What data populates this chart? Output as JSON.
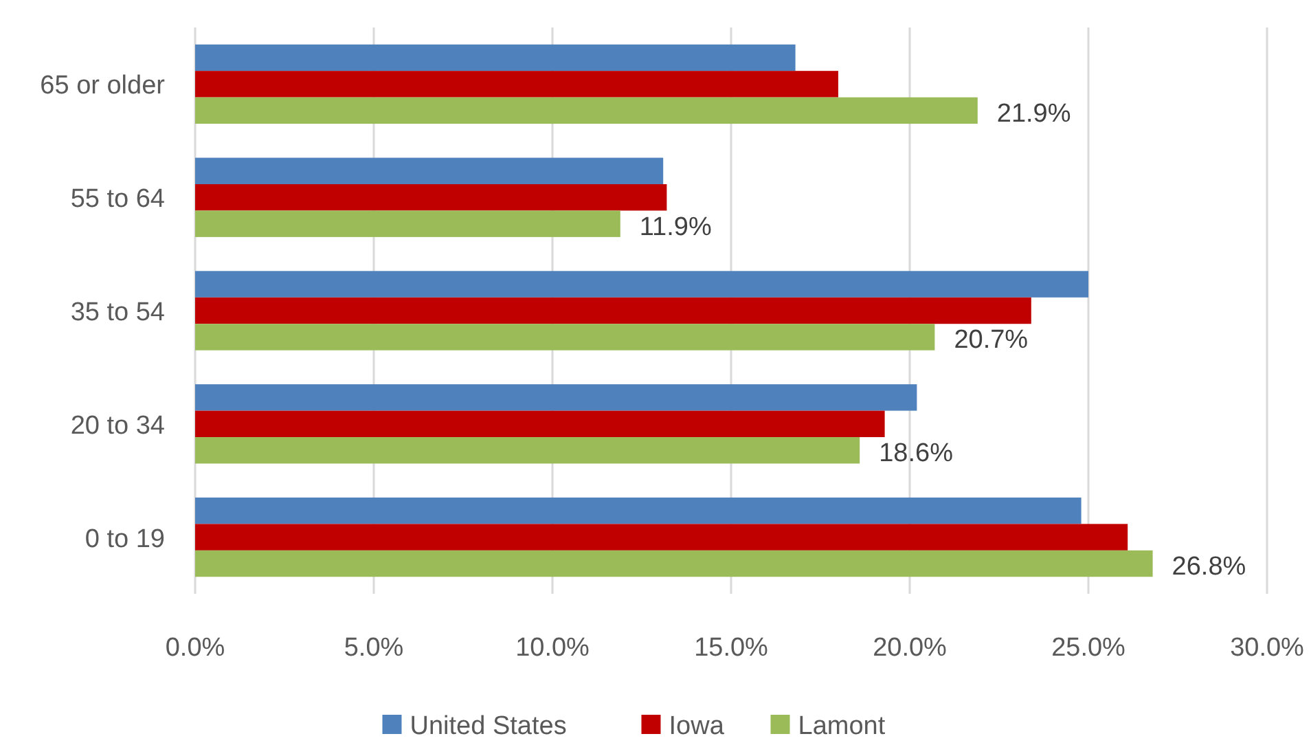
{
  "chart_data": {
    "type": "bar",
    "orientation": "horizontal",
    "categories": [
      "65 or older",
      "55 to 64",
      "35 to 54",
      "20 to 34",
      "0 to 19"
    ],
    "series": [
      {
        "name": "United States",
        "color": "#4f81bd",
        "values": [
          16.8,
          13.1,
          25.0,
          20.2,
          24.8
        ]
      },
      {
        "name": "Iowa",
        "color": "#c00000",
        "values": [
          18.0,
          13.2,
          23.4,
          19.3,
          26.1
        ]
      },
      {
        "name": "Lamont",
        "color": "#9bbb59",
        "values": [
          21.9,
          11.9,
          20.7,
          18.6,
          26.8
        ],
        "value_labels": [
          "21.9%",
          "11.9%",
          "20.7%",
          "18.6%",
          "26.8%"
        ]
      }
    ],
    "xlim": [
      0,
      30
    ],
    "xticks": [
      {
        "value": 0,
        "label": "0.0%"
      },
      {
        "value": 5,
        "label": "5.0%"
      },
      {
        "value": 10,
        "label": "10.0%"
      },
      {
        "value": 15,
        "label": "15.0%"
      },
      {
        "value": 20,
        "label": "20.0%"
      },
      {
        "value": 25,
        "label": "25.0%"
      },
      {
        "value": 30,
        "label": "30.0%"
      }
    ],
    "grid": "x",
    "legend": "bottom"
  }
}
